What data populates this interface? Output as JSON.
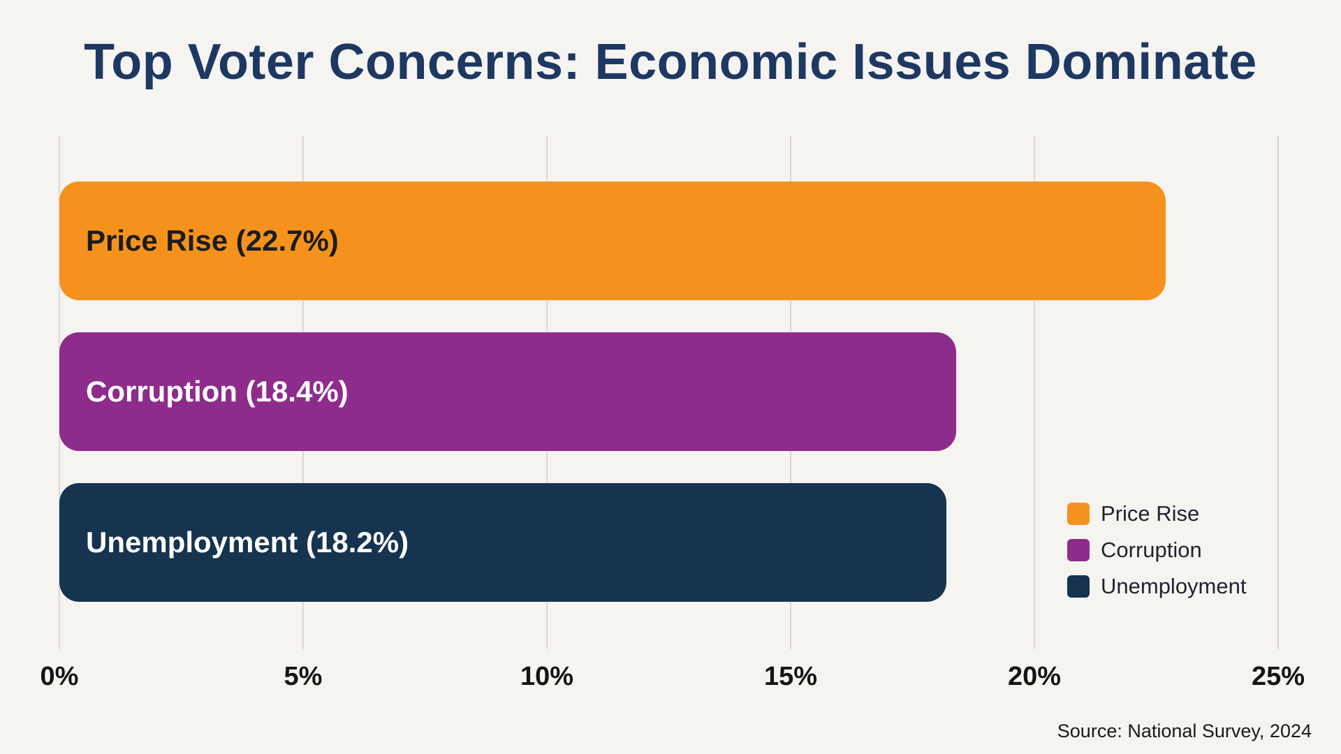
{
  "chart_data": {
    "type": "bar",
    "orientation": "horizontal",
    "title": "Top Voter Concerns: Economic Issues Dominate",
    "categories": [
      "Price Rise",
      "Corruption",
      "Unemployment"
    ],
    "values": [
      22.7,
      18.4,
      18.2
    ],
    "bar_labels": [
      "Price Rise (22.7%)",
      "Corruption (18.4%)",
      "Unemployment (18.2%)"
    ],
    "bar_colors": [
      "#F5921E",
      "#8E2C8C",
      "#16334F"
    ],
    "bar_label_colors": [
      "#1c1c1c",
      "#ffffff",
      "#ffffff"
    ],
    "xlim": [
      0,
      25
    ],
    "tick_values": [
      0,
      5,
      10,
      15,
      20,
      25
    ],
    "xticks": [
      "0%",
      "5%",
      "10%",
      "15%",
      "20%",
      "25%"
    ],
    "grid": "vertical",
    "legend_position": "right-bottom",
    "legend": [
      {
        "label": "Price Rise",
        "color": "#F5921E"
      },
      {
        "label": "Corruption",
        "color": "#8E2C8C"
      },
      {
        "label": "Unemployment",
        "color": "#16334F"
      }
    ],
    "source": "Source: National Survey, 2024"
  }
}
